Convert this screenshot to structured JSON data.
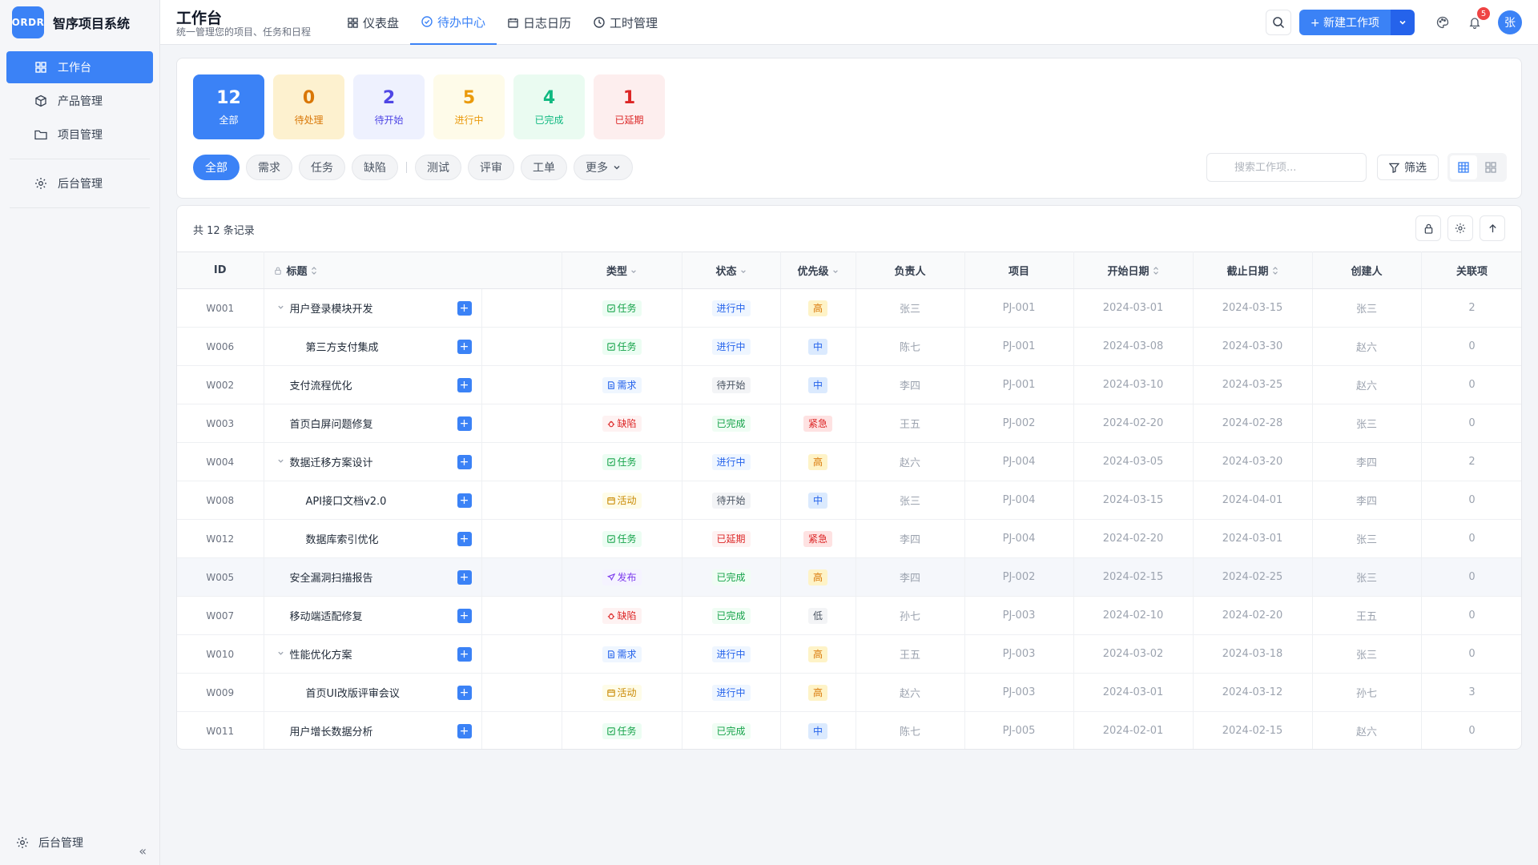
{
  "app": {
    "logo_text": "ORDR",
    "name": "智序项目系统"
  },
  "sidebar": {
    "items": [
      {
        "label": "工作台",
        "icon": "grid-icon",
        "active": true
      },
      {
        "label": "产品管理",
        "icon": "box-icon"
      },
      {
        "label": "项目管理",
        "icon": "folder-icon"
      },
      {
        "label": "后台管理",
        "icon": "gear-icon"
      }
    ],
    "footer_label": "后台管理",
    "collapse_glyph": "«"
  },
  "header": {
    "title": "工作台",
    "subtitle": "统一管理您的项目、任务和日程",
    "tabs": [
      {
        "label": "仪表盘",
        "icon": "grid-icon"
      },
      {
        "label": "待办中心",
        "icon": "check-circle-icon",
        "active": true
      },
      {
        "label": "日志日历",
        "icon": "calendar-icon"
      },
      {
        "label": "工时管理",
        "icon": "clock-icon"
      }
    ],
    "new_button": "+ 新建工作项",
    "notification_count": "5",
    "avatar_text": "张"
  },
  "stats": [
    {
      "value": "12",
      "label": "全部"
    },
    {
      "value": "0",
      "label": "待处理"
    },
    {
      "value": "2",
      "label": "待开始"
    },
    {
      "value": "5",
      "label": "进行中"
    },
    {
      "value": "4",
      "label": "已完成"
    },
    {
      "value": "1",
      "label": "已延期"
    }
  ],
  "filters": {
    "chips": [
      "全部",
      "需求",
      "任务",
      "缺陷",
      "测试",
      "评审",
      "工单",
      "更多"
    ],
    "search_placeholder": "搜索工作项...",
    "filter_label": "筛选"
  },
  "table": {
    "count_text": "共 12 条记录",
    "columns": [
      "ID",
      "标题",
      "类型",
      "状态",
      "优先级",
      "负责人",
      "项目",
      "开始日期",
      "截止日期",
      "创建人",
      "关联项"
    ],
    "rows": [
      {
        "id": "W001",
        "title": "用户登录模块开发",
        "level": 0,
        "caret": true,
        "type": "任务",
        "status": "进行中",
        "priority": "高",
        "owner": "张三",
        "project": "PJ-001",
        "start": "2024-03-01",
        "end": "2024-03-15",
        "creator": "张三",
        "links": "2"
      },
      {
        "id": "W006",
        "title": "第三方支付集成",
        "level": 1,
        "type": "任务",
        "status": "进行中",
        "priority": "中",
        "owner": "陈七",
        "project": "PJ-001",
        "start": "2024-03-08",
        "end": "2024-03-30",
        "creator": "赵六",
        "links": "0"
      },
      {
        "id": "W002",
        "title": "支付流程优化",
        "level": 0,
        "type": "需求",
        "status": "待开始",
        "priority": "中",
        "owner": "李四",
        "project": "PJ-001",
        "start": "2024-03-10",
        "end": "2024-03-25",
        "creator": "赵六",
        "links": "0"
      },
      {
        "id": "W003",
        "title": "首页白屏问题修复",
        "level": 0,
        "type": "缺陷",
        "status": "已完成",
        "priority": "紧急",
        "owner": "王五",
        "project": "PJ-002",
        "start": "2024-02-20",
        "end": "2024-02-28",
        "creator": "张三",
        "links": "0"
      },
      {
        "id": "W004",
        "title": "数据迁移方案设计",
        "level": 0,
        "caret": true,
        "type": "任务",
        "status": "进行中",
        "priority": "高",
        "owner": "赵六",
        "project": "PJ-004",
        "start": "2024-03-05",
        "end": "2024-03-20",
        "creator": "李四",
        "links": "2"
      },
      {
        "id": "W008",
        "title": "API接口文档v2.0",
        "level": 1,
        "type": "活动",
        "status": "待开始",
        "priority": "中",
        "owner": "张三",
        "project": "PJ-004",
        "start": "2024-03-15",
        "end": "2024-04-01",
        "creator": "李四",
        "links": "0"
      },
      {
        "id": "W012",
        "title": "数据库索引优化",
        "level": 1,
        "type": "任务",
        "status": "已延期",
        "priority": "紧急",
        "owner": "李四",
        "project": "PJ-004",
        "start": "2024-02-20",
        "end": "2024-03-01",
        "creator": "张三",
        "links": "0"
      },
      {
        "id": "W005",
        "title": "安全漏洞扫描报告",
        "level": 0,
        "type": "发布",
        "status": "已完成",
        "priority": "高",
        "owner": "李四",
        "project": "PJ-002",
        "start": "2024-02-15",
        "end": "2024-02-25",
        "creator": "张三",
        "links": "0"
      },
      {
        "id": "W007",
        "title": "移动端适配修复",
        "level": 0,
        "type": "缺陷",
        "status": "已完成",
        "priority": "低",
        "owner": "孙七",
        "project": "PJ-003",
        "start": "2024-02-10",
        "end": "2024-02-20",
        "creator": "王五",
        "links": "0"
      },
      {
        "id": "W010",
        "title": "性能优化方案",
        "level": 0,
        "caret": true,
        "type": "需求",
        "status": "进行中",
        "priority": "高",
        "owner": "王五",
        "project": "PJ-003",
        "start": "2024-03-02",
        "end": "2024-03-18",
        "creator": "张三",
        "links": "0"
      },
      {
        "id": "W009",
        "title": "首页UI改版评审会议",
        "level": 1,
        "type": "活动",
        "status": "进行中",
        "priority": "高",
        "owner": "赵六",
        "project": "PJ-003",
        "start": "2024-03-01",
        "end": "2024-03-12",
        "creator": "孙七",
        "links": "3"
      },
      {
        "id": "W011",
        "title": "用户增长数据分析",
        "level": 0,
        "type": "任务",
        "status": "已完成",
        "priority": "中",
        "owner": "陈七",
        "project": "PJ-005",
        "start": "2024-02-01",
        "end": "2024-02-15",
        "creator": "赵六",
        "links": "0"
      }
    ]
  },
  "colors": {
    "accent": "#3b82f6"
  }
}
